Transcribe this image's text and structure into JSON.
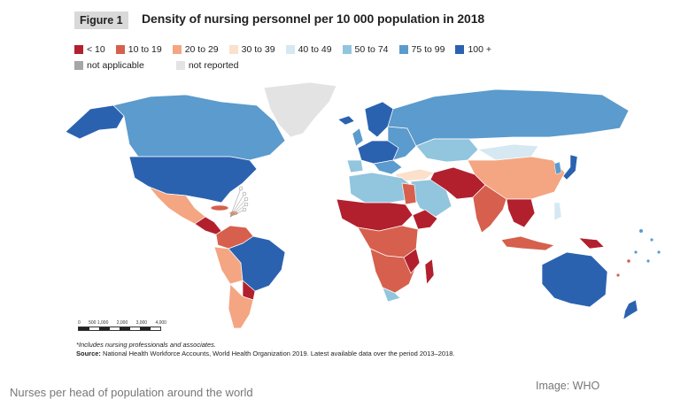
{
  "figure": {
    "tag": "Figure 1",
    "title": "Density of nursing personnel per 10 000 population in 2018"
  },
  "legend": {
    "row1": [
      {
        "label": "< 10",
        "color": "#b2202e"
      },
      {
        "label": "10 to 19",
        "color": "#d6604d"
      },
      {
        "label": "20 to 29",
        "color": "#f4a582"
      },
      {
        "label": "30 to 39",
        "color": "#fbe0cb"
      },
      {
        "label": "40 to 49",
        "color": "#d6e8f2"
      },
      {
        "label": "50 to 74",
        "color": "#92c5de"
      },
      {
        "label": "75 to 99",
        "color": "#5b9bcd"
      },
      {
        "label": "100 +",
        "color": "#2b62b0"
      }
    ],
    "row2": [
      {
        "label": "not applicable",
        "color": "#a6a6a6"
      },
      {
        "label": "not reported",
        "color": "#e3e3e3"
      }
    ]
  },
  "scale": {
    "labels": [
      "0",
      "500 1,000",
      "2,000",
      "3,000",
      "4,000"
    ]
  },
  "notes": {
    "footnote": "*Includes nursing professionals and associates.",
    "source_label": "Source:",
    "source_text": " National Health Workforce Accounts, World Health Organization 2019. Latest available data over the period 2013–2018."
  },
  "caption": "Nurses per head of population around the world",
  "credit": "Image: WHO"
}
